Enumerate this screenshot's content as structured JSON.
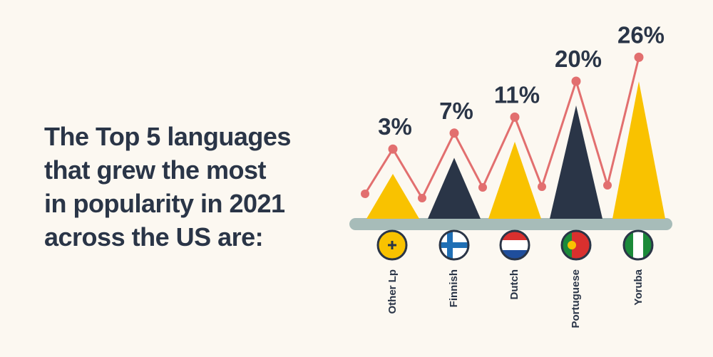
{
  "chart_data": {
    "type": "bar",
    "title": "The Top 5 languages\nthat grew the most\nin popularity in 2021\nacross the US are:",
    "categories": [
      "Other Lp",
      "Finnish",
      "Dutch",
      "Portuguese",
      "Yoruba"
    ],
    "values": [
      3,
      7,
      11,
      20,
      26
    ],
    "value_labels": [
      "3%",
      "7%",
      "11%",
      "20%",
      "26%"
    ],
    "colors": [
      "#f9c200",
      "#2a3547",
      "#f9c200",
      "#2a3547",
      "#f9c200"
    ],
    "line_color": "#e26f6f"
  }
}
